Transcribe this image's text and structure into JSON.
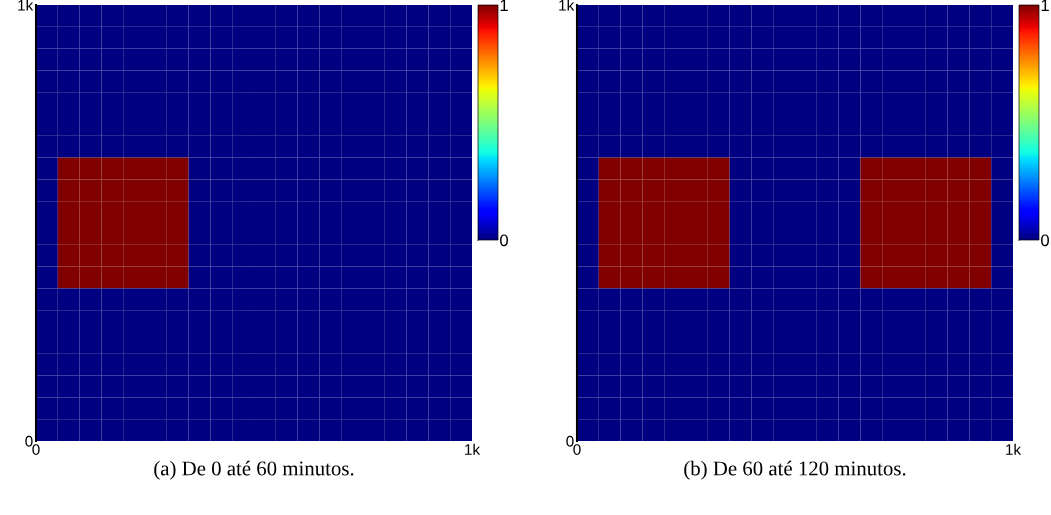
{
  "chart_data": [
    {
      "type": "heatmap",
      "xlabel": "(a) De 0 até 60 minutos.",
      "xlim": [
        0,
        1000
      ],
      "xticks": [
        0,
        {
          "value": 1000,
          "label": "1k"
        }
      ],
      "ylim": [
        0,
        1000
      ],
      "yticks": [
        0,
        {
          "value": 1000,
          "label": "1k"
        }
      ],
      "clim": [
        0,
        1
      ],
      "cticks": [
        0,
        1
      ],
      "cells": [
        [
          0,
          0,
          0,
          0,
          0,
          0,
          0,
          0,
          0,
          0,
          0,
          0,
          0,
          0,
          0,
          0,
          0,
          0,
          0,
          0
        ],
        [
          0,
          0,
          0,
          0,
          0,
          0,
          0,
          0,
          0,
          0,
          0,
          0,
          0,
          0,
          0,
          0,
          0,
          0,
          0,
          0
        ],
        [
          0,
          0,
          0,
          0,
          0,
          0,
          0,
          0,
          0,
          0,
          0,
          0,
          0,
          0,
          0,
          0,
          0,
          0,
          0,
          0
        ],
        [
          0,
          0,
          0,
          0,
          0,
          0,
          0,
          0,
          0,
          0,
          0,
          0,
          0,
          0,
          0,
          0,
          0,
          0,
          0,
          0
        ],
        [
          0,
          0,
          0,
          0,
          0,
          0,
          0,
          0,
          0,
          0,
          0,
          0,
          0,
          0,
          0,
          0,
          0,
          0,
          0,
          0
        ],
        [
          0,
          0,
          0,
          0,
          0,
          0,
          0,
          0,
          0,
          0,
          0,
          0,
          0,
          0,
          0,
          0,
          0,
          0,
          0,
          0
        ],
        [
          0,
          0,
          0,
          0,
          0,
          0,
          0,
          0,
          0,
          0,
          0,
          0,
          0,
          0,
          0,
          0,
          0,
          0,
          0,
          0
        ],
        [
          0,
          1,
          1,
          1,
          1,
          1,
          1,
          0,
          0,
          0,
          0,
          0,
          0,
          0,
          0,
          0,
          0,
          0,
          0,
          0
        ],
        [
          0,
          1,
          1,
          1,
          1,
          1,
          1,
          0,
          0,
          0,
          0,
          0,
          0,
          0,
          0,
          0,
          0,
          0,
          0,
          0
        ],
        [
          0,
          1,
          1,
          1,
          1,
          1,
          1,
          0,
          0,
          0,
          0,
          0,
          0,
          0,
          0,
          0,
          0,
          0,
          0,
          0
        ],
        [
          0,
          1,
          1,
          1,
          1,
          1,
          1,
          0,
          0,
          0,
          0,
          0,
          0,
          0,
          0,
          0,
          0,
          0,
          0,
          0
        ],
        [
          0,
          1,
          1,
          1,
          1,
          1,
          1,
          0,
          0,
          0,
          0,
          0,
          0,
          0,
          0,
          0,
          0,
          0,
          0,
          0
        ],
        [
          0,
          1,
          1,
          1,
          1,
          1,
          1,
          0,
          0,
          0,
          0,
          0,
          0,
          0,
          0,
          0,
          0,
          0,
          0,
          0
        ],
        [
          0,
          0,
          0,
          0,
          0,
          0,
          0,
          0,
          0,
          0,
          0,
          0,
          0,
          0,
          0,
          0,
          0,
          0,
          0,
          0
        ],
        [
          0,
          0,
          0,
          0,
          0,
          0,
          0,
          0,
          0,
          0,
          0,
          0,
          0,
          0,
          0,
          0,
          0,
          0,
          0,
          0
        ],
        [
          0,
          0,
          0,
          0,
          0,
          0,
          0,
          0,
          0,
          0,
          0,
          0,
          0,
          0,
          0,
          0,
          0,
          0,
          0,
          0
        ],
        [
          0,
          0,
          0,
          0,
          0,
          0,
          0,
          0,
          0,
          0,
          0,
          0,
          0,
          0,
          0,
          0,
          0,
          0,
          0,
          0
        ],
        [
          0,
          0,
          0,
          0,
          0,
          0,
          0,
          0,
          0,
          0,
          0,
          0,
          0,
          0,
          0,
          0,
          0,
          0,
          0,
          0
        ],
        [
          0,
          0,
          0,
          0,
          0,
          0,
          0,
          0,
          0,
          0,
          0,
          0,
          0,
          0,
          0,
          0,
          0,
          0,
          0,
          0
        ],
        [
          0,
          0,
          0,
          0,
          0,
          0,
          0,
          0,
          0,
          0,
          0,
          0,
          0,
          0,
          0,
          0,
          0,
          0,
          0,
          0
        ]
      ]
    },
    {
      "type": "heatmap",
      "xlabel": "(b) De 60 até 120 minutos.",
      "xlim": [
        0,
        1000
      ],
      "xticks": [
        0,
        {
          "value": 1000,
          "label": "1k"
        }
      ],
      "ylim": [
        0,
        1000
      ],
      "yticks": [
        0,
        {
          "value": 1000,
          "label": "1k"
        }
      ],
      "clim": [
        0,
        1
      ],
      "cticks": [
        0,
        1
      ],
      "cells": [
        [
          0,
          0,
          0,
          0,
          0,
          0,
          0,
          0,
          0,
          0,
          0,
          0,
          0,
          0,
          0,
          0,
          0,
          0,
          0,
          0
        ],
        [
          0,
          0,
          0,
          0,
          0,
          0,
          0,
          0,
          0,
          0,
          0,
          0,
          0,
          0,
          0,
          0,
          0,
          0,
          0,
          0
        ],
        [
          0,
          0,
          0,
          0,
          0,
          0,
          0,
          0,
          0,
          0,
          0,
          0,
          0,
          0,
          0,
          0,
          0,
          0,
          0,
          0
        ],
        [
          0,
          0,
          0,
          0,
          0,
          0,
          0,
          0,
          0,
          0,
          0,
          0,
          0,
          0,
          0,
          0,
          0,
          0,
          0,
          0
        ],
        [
          0,
          0,
          0,
          0,
          0,
          0,
          0,
          0,
          0,
          0,
          0,
          0,
          0,
          0,
          0,
          0,
          0,
          0,
          0,
          0
        ],
        [
          0,
          0,
          0,
          0,
          0,
          0,
          0,
          0,
          0,
          0,
          0,
          0,
          0,
          0,
          0,
          0,
          0,
          0,
          0,
          0
        ],
        [
          0,
          0,
          0,
          0,
          0,
          0,
          0,
          0,
          0,
          0,
          0,
          0,
          0,
          0,
          0,
          0,
          0,
          0,
          0,
          0
        ],
        [
          0,
          1,
          1,
          1,
          1,
          1,
          1,
          0,
          0,
          0,
          0,
          0,
          0,
          1,
          1,
          1,
          1,
          1,
          1,
          0
        ],
        [
          0,
          1,
          1,
          1,
          1,
          1,
          1,
          0,
          0,
          0,
          0,
          0,
          0,
          1,
          1,
          1,
          1,
          1,
          1,
          0
        ],
        [
          0,
          1,
          1,
          1,
          1,
          1,
          1,
          0,
          0,
          0,
          0,
          0,
          0,
          1,
          1,
          1,
          1,
          1,
          1,
          0
        ],
        [
          0,
          1,
          1,
          1,
          1,
          1,
          1,
          0,
          0,
          0,
          0,
          0,
          0,
          1,
          1,
          1,
          1,
          1,
          1,
          0
        ],
        [
          0,
          1,
          1,
          1,
          1,
          1,
          1,
          0,
          0,
          0,
          0,
          0,
          0,
          1,
          1,
          1,
          1,
          1,
          1,
          0
        ],
        [
          0,
          1,
          1,
          1,
          1,
          1,
          1,
          0,
          0,
          0,
          0,
          0,
          0,
          1,
          1,
          1,
          1,
          1,
          1,
          0
        ],
        [
          0,
          0,
          0,
          0,
          0,
          0,
          0,
          0,
          0,
          0,
          0,
          0,
          0,
          0,
          0,
          0,
          0,
          0,
          0,
          0
        ],
        [
          0,
          0,
          0,
          0,
          0,
          0,
          0,
          0,
          0,
          0,
          0,
          0,
          0,
          0,
          0,
          0,
          0,
          0,
          0,
          0
        ],
        [
          0,
          0,
          0,
          0,
          0,
          0,
          0,
          0,
          0,
          0,
          0,
          0,
          0,
          0,
          0,
          0,
          0,
          0,
          0,
          0
        ],
        [
          0,
          0,
          0,
          0,
          0,
          0,
          0,
          0,
          0,
          0,
          0,
          0,
          0,
          0,
          0,
          0,
          0,
          0,
          0,
          0
        ],
        [
          0,
          0,
          0,
          0,
          0,
          0,
          0,
          0,
          0,
          0,
          0,
          0,
          0,
          0,
          0,
          0,
          0,
          0,
          0,
          0
        ],
        [
          0,
          0,
          0,
          0,
          0,
          0,
          0,
          0,
          0,
          0,
          0,
          0,
          0,
          0,
          0,
          0,
          0,
          0,
          0,
          0
        ],
        [
          0,
          0,
          0,
          0,
          0,
          0,
          0,
          0,
          0,
          0,
          0,
          0,
          0,
          0,
          0,
          0,
          0,
          0,
          0,
          0
        ]
      ]
    }
  ]
}
